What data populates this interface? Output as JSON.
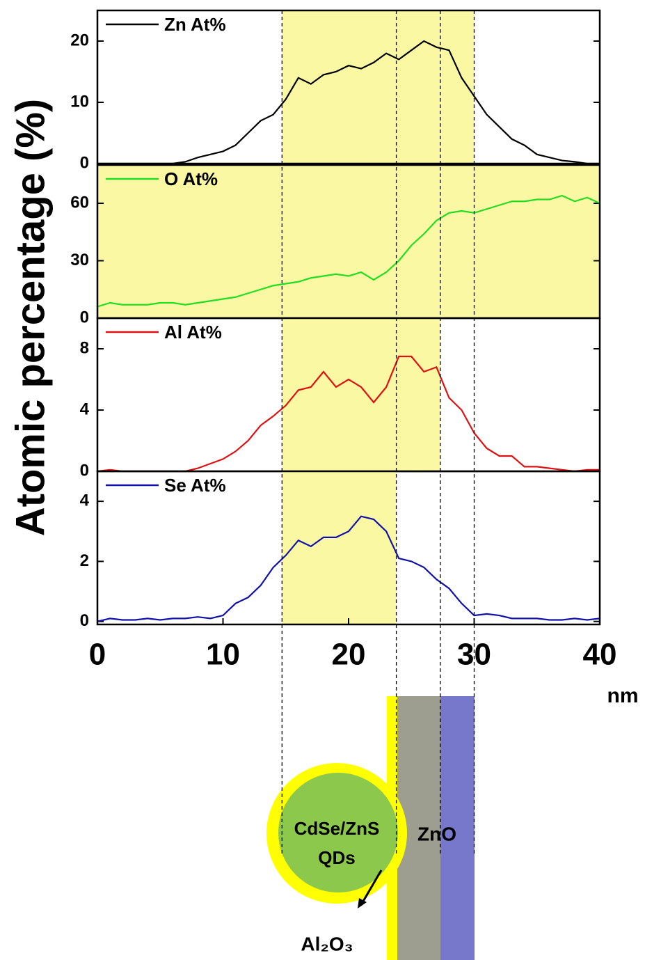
{
  "chart_data": [
    {
      "type": "line",
      "x": [
        0,
        1,
        2,
        3,
        4,
        5,
        6,
        7,
        8,
        9,
        10,
        11,
        12,
        13,
        14,
        15,
        16,
        17,
        18,
        19,
        20,
        21,
        22,
        23,
        24,
        25,
        26,
        27,
        28,
        29,
        30,
        31,
        32,
        33,
        34,
        35,
        36,
        37,
        38,
        39,
        40
      ],
      "series": [
        {
          "name": "Zn At%",
          "color": "#000000",
          "values": [
            0,
            0,
            0,
            0,
            0,
            0,
            0,
            0.3,
            1,
            1.5,
            2,
            3,
            5,
            7,
            8,
            10.5,
            14,
            13,
            14.5,
            15,
            16,
            15.5,
            16.5,
            18,
            17,
            18.5,
            20,
            19,
            18.5,
            14,
            11,
            8,
            6,
            4,
            3,
            1.5,
            1,
            0.5,
            0.3,
            0,
            0
          ]
        }
      ],
      "xlim": [
        0,
        40
      ],
      "ylim": [
        0,
        25
      ],
      "yticks": [
        0,
        10,
        20
      ],
      "highlight": [
        14.7,
        30
      ],
      "highlight_color": "#fbf8a4"
    },
    {
      "type": "line",
      "x": [
        0,
        1,
        2,
        3,
        4,
        5,
        6,
        7,
        8,
        9,
        10,
        11,
        12,
        13,
        14,
        15,
        16,
        17,
        18,
        19,
        20,
        21,
        22,
        23,
        24,
        25,
        26,
        27,
        28,
        29,
        30,
        31,
        32,
        33,
        34,
        35,
        36,
        37,
        38,
        39,
        40
      ],
      "series": [
        {
          "name": "O At%",
          "color": "#22dd22",
          "values": [
            6,
            8,
            7,
            7,
            7,
            8,
            8,
            7,
            8,
            9,
            10,
            11,
            13,
            15,
            17,
            18,
            19,
            21,
            22,
            23,
            22,
            24,
            20,
            24,
            30,
            38,
            44,
            51,
            55,
            56,
            55,
            57,
            59,
            61,
            61,
            62,
            62,
            64,
            61,
            63,
            60
          ]
        }
      ],
      "xlim": [
        0,
        40
      ],
      "ylim": [
        0,
        80
      ],
      "yticks": [
        0,
        30,
        60
      ],
      "highlight": [
        0,
        40
      ],
      "highlight_color": "#fbf8a4"
    },
    {
      "type": "line",
      "x": [
        0,
        1,
        2,
        3,
        4,
        5,
        6,
        7,
        8,
        9,
        10,
        11,
        12,
        13,
        14,
        15,
        16,
        17,
        18,
        19,
        20,
        21,
        22,
        23,
        24,
        25,
        26,
        27,
        28,
        29,
        30,
        31,
        32,
        33,
        34,
        35,
        36,
        37,
        38,
        39,
        40
      ],
      "series": [
        {
          "name": "Al At%",
          "color": "#dd1111",
          "values": [
            0,
            0.1,
            0,
            0,
            0,
            0,
            0,
            0,
            0.2,
            0.5,
            0.8,
            1.3,
            2,
            3,
            3.6,
            4.3,
            5.3,
            5.5,
            6.5,
            5.5,
            6,
            5.5,
            4.5,
            5.5,
            7.5,
            7.5,
            6.5,
            6.8,
            4.8,
            4,
            2.5,
            1.5,
            1,
            1,
            0.3,
            0.3,
            0.2,
            0.1,
            0,
            0.1,
            0.1
          ]
        }
      ],
      "xlim": [
        0,
        40
      ],
      "ylim": [
        0,
        10
      ],
      "yticks": [
        0,
        4,
        8
      ],
      "highlight": [
        14.7,
        27.3
      ],
      "highlight_color": "#fbf8a4"
    },
    {
      "type": "line",
      "x": [
        0,
        1,
        2,
        3,
        4,
        5,
        6,
        7,
        8,
        9,
        10,
        11,
        12,
        13,
        14,
        15,
        16,
        17,
        18,
        19,
        20,
        21,
        22,
        23,
        24,
        25,
        26,
        27,
        28,
        29,
        30,
        31,
        32,
        33,
        34,
        35,
        36,
        37,
        38,
        39,
        40
      ],
      "series": [
        {
          "name": "Se At%",
          "color": "#1111aa",
          "values": [
            0,
            0.1,
            0.05,
            0.05,
            0.1,
            0.05,
            0.1,
            0.1,
            0.15,
            0.1,
            0.2,
            0.6,
            0.8,
            1.2,
            1.8,
            2.2,
            2.7,
            2.5,
            2.8,
            2.8,
            3,
            3.5,
            3.4,
            3,
            2.1,
            2,
            1.8,
            1.4,
            1.1,
            0.6,
            0.2,
            0.25,
            0.2,
            0.1,
            0.1,
            0.1,
            0.05,
            0.05,
            0.1,
            0.05,
            0.1
          ]
        }
      ],
      "xlim": [
        0,
        40
      ],
      "ylim": [
        -0.1,
        5
      ],
      "yticks": [
        0,
        2,
        4
      ],
      "xticks": [
        0,
        10,
        20,
        30,
        40
      ],
      "xlabel": "nm",
      "highlight": [
        14.7,
        23.8
      ],
      "highlight_color": "#fbf8a4"
    }
  ],
  "ylabel": "Atomic percentage (%)",
  "dashed_lines": [
    14.7,
    23.8,
    27.3,
    30
  ],
  "diagram": {
    "qd_label": [
      "CdSe/ZnS",
      "QDs"
    ],
    "layer_label": "ZnO",
    "shell_label": "Al₂O₃"
  }
}
